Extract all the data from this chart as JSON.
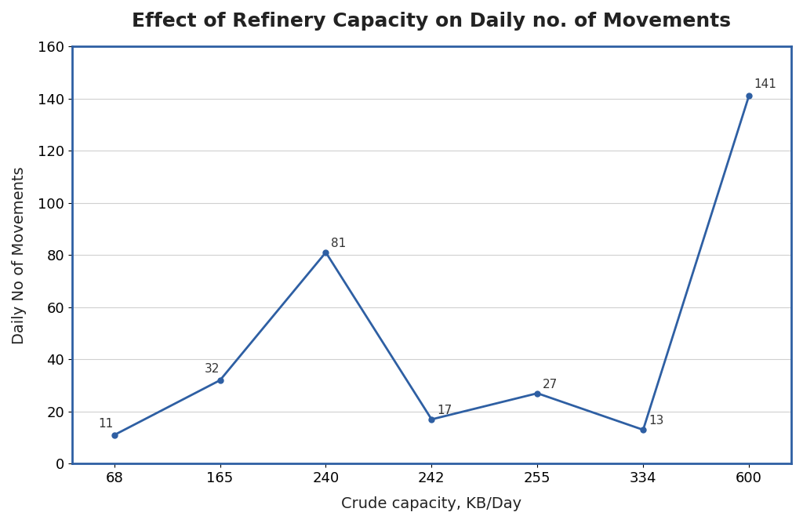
{
  "title": "Effect of Refinery Capacity on Daily no. of Movements",
  "xlabel": "Crude capacity, KB/Day",
  "ylabel": "Daily No of Movements",
  "x_labels": [
    "68",
    "165",
    "240",
    "242",
    "255",
    "334",
    "600"
  ],
  "y_values": [
    11,
    32,
    81,
    17,
    27,
    13,
    141
  ],
  "ylim": [
    0,
    160
  ],
  "yticks": [
    0,
    20,
    40,
    60,
    80,
    100,
    120,
    140,
    160
  ],
  "line_color": "#2E5FA3",
  "line_width": 2.0,
  "marker": "o",
  "marker_size": 5,
  "title_fontsize": 18,
  "label_fontsize": 14,
  "tick_fontsize": 13,
  "annotation_fontsize": 11,
  "background_color": "#ffffff",
  "plot_bg_color": "#ffffff",
  "spine_color": "#2E5FA3",
  "grid_color": "#d0d0d0"
}
